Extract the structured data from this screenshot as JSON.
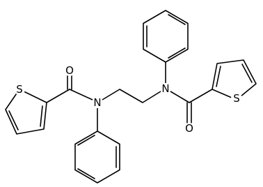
{
  "atoms": [
    {
      "label": "S"
    },
    {
      "label": "O"
    },
    {
      "label": "N"
    },
    {
      "label": "N"
    },
    {
      "label": "O"
    },
    {
      "label": "S"
    }
  ]
}
